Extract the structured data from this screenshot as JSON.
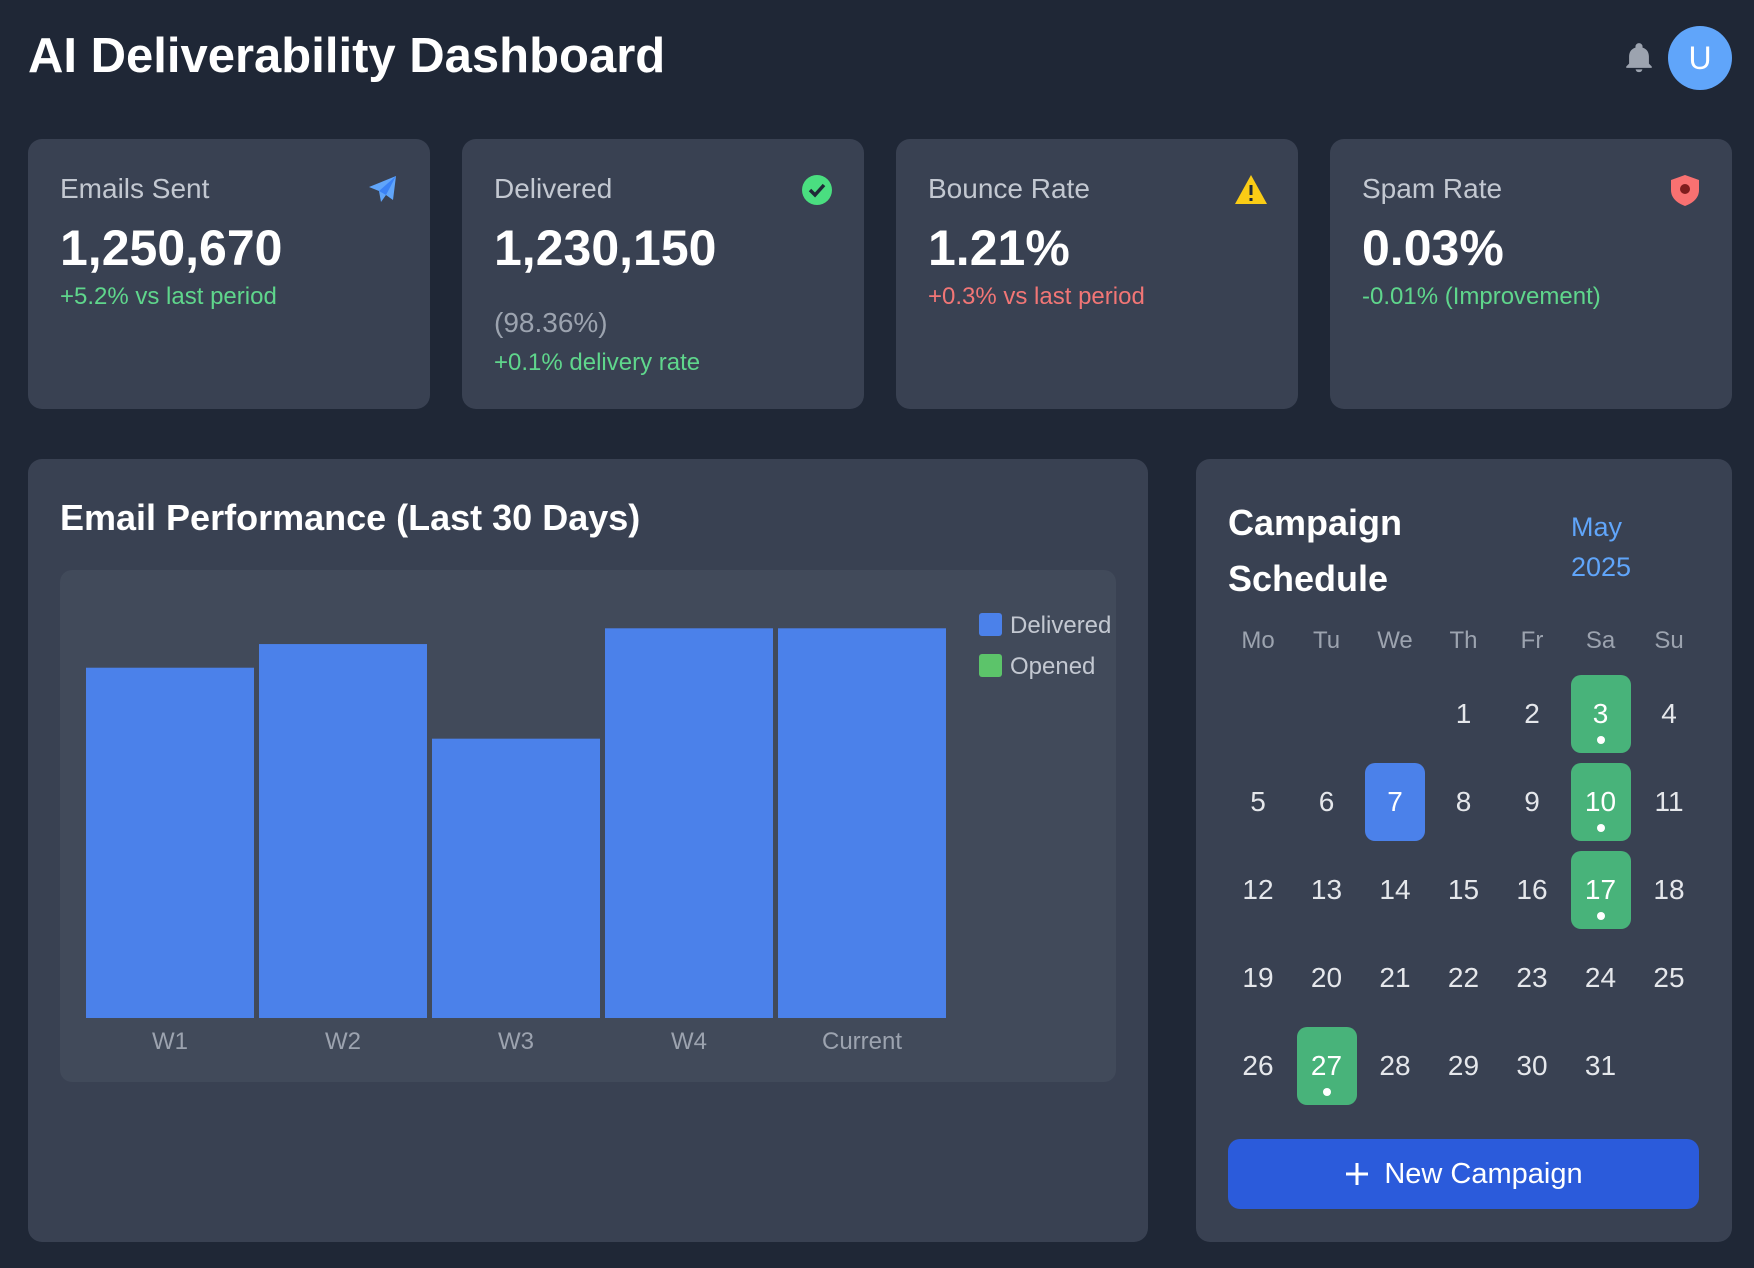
{
  "header": {
    "title": "AI Deliverability Dashboard",
    "avatar": "U"
  },
  "cards": [
    {
      "label": "Emails Sent",
      "value": "1,250,670",
      "change": "+5.2% vs last period",
      "trend": "good"
    },
    {
      "label": "Delivered",
      "value": "1,230,150",
      "detail": "(98.36%)",
      "change": "+0.1% delivery rate",
      "trend": "good"
    },
    {
      "label": "Bounce Rate",
      "value": "1.21%",
      "change": "+0.3% vs last period",
      "trend": "bad"
    },
    {
      "label": "Spam Rate",
      "value": "0.03%",
      "change": "-0.01% (Improvement)",
      "trend": "good"
    }
  ],
  "chart_data": {
    "type": "bar",
    "title": "Email Performance (Last 30 Days)",
    "categories": [
      "W1",
      "W2",
      "W3",
      "W4",
      "Current"
    ],
    "series": [
      {
        "name": "Delivered",
        "color": "#4b81ea",
        "values": [
          311,
          332,
          248,
          346,
          346
        ]
      },
      {
        "name": "Opened",
        "color": "#5cc46a",
        "values": [
          null,
          null,
          null,
          null,
          null
        ]
      }
    ],
    "ylim": [
      0,
      380
    ],
    "legend": "top-right"
  },
  "calendar": {
    "title": "Campaign Schedule",
    "month": "May 2025",
    "weekdays": [
      "Mo",
      "Tu",
      "We",
      "Th",
      "Fr",
      "Sa",
      "Su"
    ],
    "days": [
      1,
      2,
      3,
      4,
      5,
      6,
      7,
      8,
      9,
      10,
      11,
      12,
      13,
      14,
      15,
      16,
      17,
      18,
      19,
      20,
      21,
      22,
      23,
      24,
      25,
      26,
      27,
      28,
      29,
      30,
      31
    ],
    "campaign_days": [
      3,
      10,
      17,
      27
    ],
    "selected_day": 7,
    "button": "New Campaign"
  }
}
